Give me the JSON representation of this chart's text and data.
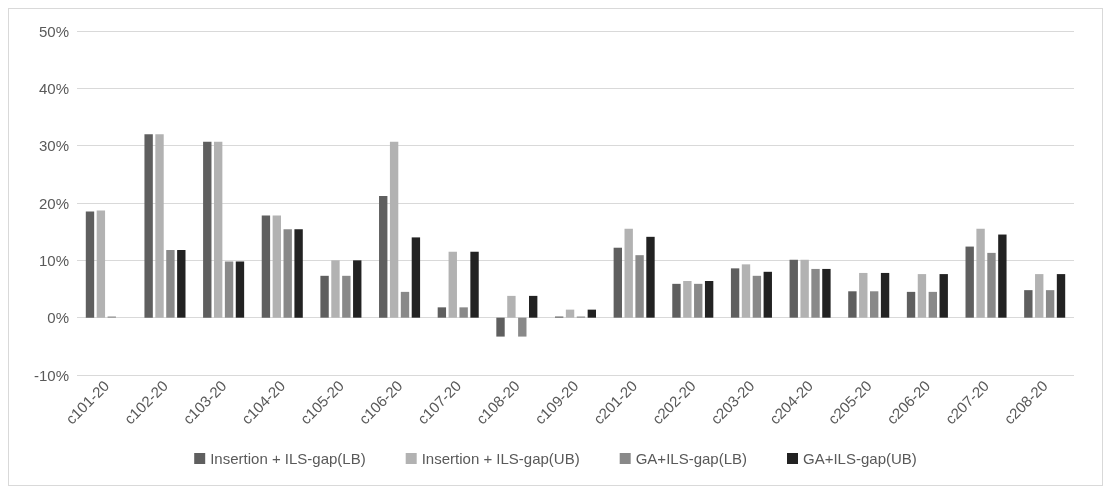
{
  "chart_data": {
    "type": "bar",
    "categories": [
      "c101-20",
      "c102-20",
      "c103-20",
      "c104-20",
      "c105-20",
      "c106-20",
      "c107-20",
      "c108-20",
      "c109-20",
      "c201-20",
      "c202-20",
      "c203-20",
      "c204-20",
      "c205-20",
      "c206-20",
      "c207-20",
      "c208-20"
    ],
    "series": [
      {
        "name": "Insertion + ILS-gap(LB)",
        "color": "#5f5f5f",
        "values": [
          18.5,
          32,
          30.7,
          17.8,
          7.3,
          21.2,
          1.8,
          -3.3,
          0.2,
          12.2,
          5.9,
          8.6,
          10.1,
          4.6,
          4.5,
          12.4,
          4.8
        ]
      },
      {
        "name": "Insertion + ILS-gap(UB)",
        "color": "#b2b2b2",
        "values": [
          18.7,
          32,
          30.7,
          17.8,
          10,
          30.7,
          11.5,
          3.8,
          1.4,
          15.5,
          6.4,
          9.3,
          10.1,
          7.8,
          7.6,
          15.5,
          7.6
        ]
      },
      {
        "name": "GA+ILS-gap(LB)",
        "color": "#898989",
        "values": [
          0.2,
          11.8,
          9.8,
          15.4,
          7.3,
          4.5,
          1.8,
          -3.3,
          0.2,
          10.9,
          5.9,
          7.3,
          8.5,
          4.6,
          4.5,
          11.3,
          4.8
        ]
      },
      {
        "name": "GA+ILS-gap(UB)",
        "color": "#222222",
        "values": [
          0,
          11.8,
          9.8,
          15.4,
          10,
          14,
          11.5,
          3.8,
          1.4,
          14.1,
          6.4,
          8,
          8.5,
          7.8,
          7.6,
          14.5,
          7.6
        ]
      }
    ],
    "ylim": [
      -10,
      50
    ],
    "yticks": [
      {
        "value": -10,
        "label": "-10%"
      },
      {
        "value": 0,
        "label": "0%"
      },
      {
        "value": 10,
        "label": "10%"
      },
      {
        "value": 20,
        "label": "20%"
      },
      {
        "value": 30,
        "label": "30%"
      },
      {
        "value": 40,
        "label": "40%"
      },
      {
        "value": 50,
        "label": "50%"
      }
    ],
    "grid": "y",
    "legend": "bottom"
  }
}
